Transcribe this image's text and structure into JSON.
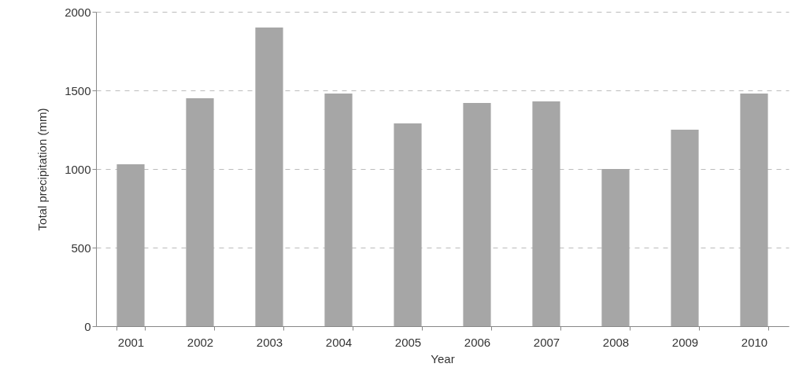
{
  "chart_data": {
    "type": "bar",
    "xlabel": "Year",
    "ylabel": "Total precipitation (mm)",
    "categories": [
      "2001",
      "2002",
      "2003",
      "2004",
      "2005",
      "2006",
      "2007",
      "2008",
      "2009",
      "2010"
    ],
    "values": [
      1030,
      1450,
      1900,
      1480,
      1290,
      1420,
      1430,
      1000,
      1250,
      1480
    ],
    "color": "#a6a6a6",
    "ylim": [
      0,
      2000
    ],
    "yticks": [
      0,
      500,
      1000,
      1500,
      2000
    ],
    "grid": "y"
  }
}
